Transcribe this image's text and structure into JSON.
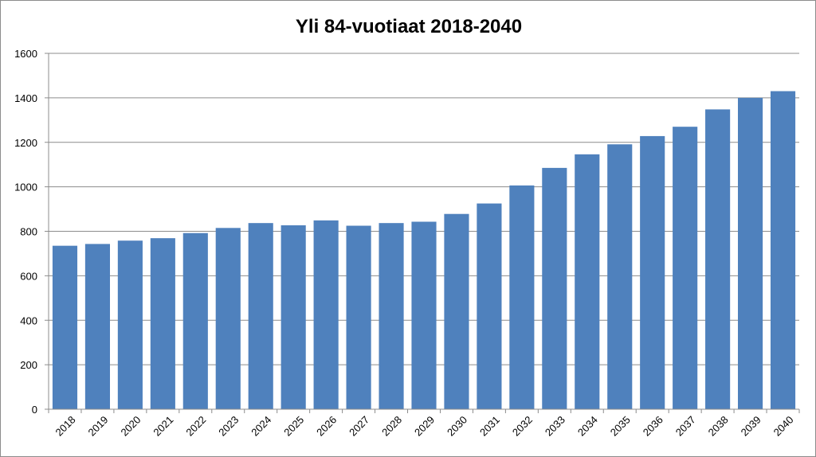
{
  "chart_data": {
    "type": "bar",
    "title": "Yli 84-vuotiaat 2018-2040",
    "xlabel": "",
    "ylabel": "",
    "categories": [
      "2018",
      "2019",
      "2020",
      "2021",
      "2022",
      "2023",
      "2024",
      "2025",
      "2026",
      "2027",
      "2028",
      "2029",
      "2030",
      "2031",
      "2032",
      "2033",
      "2034",
      "2035",
      "2036",
      "2037",
      "2038",
      "2039",
      "2040"
    ],
    "values": [
      735,
      743,
      758,
      769,
      792,
      815,
      837,
      827,
      849,
      825,
      837,
      843,
      878,
      925,
      1006,
      1085,
      1146,
      1191,
      1228,
      1270,
      1348,
      1400,
      1430
    ],
    "ylim": [
      0,
      1600
    ],
    "yticks": [
      0,
      200,
      400,
      600,
      800,
      1000,
      1200,
      1400,
      1600
    ],
    "grid": true,
    "legend": "none",
    "bar_color": "#4f81bd",
    "grid_color": "#8c8c8c"
  }
}
